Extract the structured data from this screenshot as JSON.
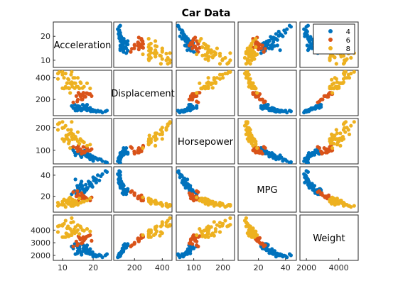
{
  "chart_data": {
    "type": "scatter",
    "title": "Car Data",
    "variables": [
      "Acceleration",
      "Displacement",
      "Horsepower",
      "MPG",
      "Weight"
    ],
    "limits": {
      "Acceleration": [
        7,
        26
      ],
      "Displacement": [
        50,
        470
      ],
      "Horsepower": [
        40,
        240
      ],
      "MPG": [
        5,
        48
      ],
      "Weight": [
        1600,
        5200
      ]
    },
    "ticks": {
      "Acceleration": [
        10,
        20
      ],
      "Displacement": [
        200,
        400
      ],
      "Horsepower": [
        100,
        200
      ],
      "MPG": [
        20,
        40
      ],
      "Weight": [
        2000,
        3000,
        4000
      ]
    },
    "row_tick_labels": {
      "Acceleration": [
        "20",
        "10"
      ],
      "Displacement": [
        "400",
        "200"
      ],
      "Horsepower": [
        "200",
        "100"
      ],
      "MPG": [
        "40",
        "20"
      ],
      "Weight": [
        "4000",
        "3000",
        "2000"
      ]
    },
    "column_tick_labels": {
      "Acceleration": [
        "10",
        "20"
      ],
      "Displacement": [
        "200",
        "400"
      ],
      "Horsepower": [
        "100",
        "200"
      ],
      "MPG": [
        "20",
        "40"
      ],
      "Weight": [
        "2000",
        "4000"
      ]
    },
    "grid": false,
    "legend_position": "top-right",
    "series": [
      {
        "name": "4",
        "color": "#0072BD",
        "points": [
          [
            18,
            98,
            72,
            28,
            2180
          ],
          [
            16,
            107,
            76,
            32,
            2250
          ],
          [
            17,
            120,
            88,
            26,
            2400
          ],
          [
            19,
            97,
            60,
            33,
            2100
          ],
          [
            15,
            140,
            92,
            24,
            2600
          ],
          [
            14.5,
            121,
            110,
            22,
            2800
          ],
          [
            20,
            91,
            53,
            38,
            1900
          ],
          [
            21,
            85,
            65,
            36,
            2000
          ],
          [
            16.5,
            112,
            80,
            30,
            2300
          ],
          [
            15.5,
            135,
            96,
            26,
            2700
          ],
          [
            18.5,
            105,
            70,
            34,
            2150
          ],
          [
            17.5,
            119,
            86,
            27,
            2450
          ],
          [
            14,
            151,
            90,
            25,
            2900
          ],
          [
            22,
            89,
            62,
            35,
            2050
          ],
          [
            24,
            90,
            48,
            44,
            2000
          ],
          [
            19.5,
            98,
            66,
            31,
            2100
          ],
          [
            13.5,
            120,
            100,
            24,
            2550
          ],
          [
            16,
            98,
            75,
            29,
            2200
          ],
          [
            17,
            140,
            86,
            25,
            2750
          ],
          [
            21.5,
            97,
            58,
            40,
            1950
          ],
          [
            15,
            108,
            88,
            28,
            2350
          ],
          [
            18,
            151,
            84,
            27,
            2800
          ],
          [
            23,
            79,
            52,
            41,
            1850
          ],
          [
            16.8,
            113,
            95,
            23,
            2550
          ],
          [
            19,
            122,
            80,
            30,
            2500
          ],
          [
            14.8,
            97,
            88,
            30,
            2150
          ],
          [
            17.8,
            134,
            92,
            26,
            2650
          ],
          [
            20.5,
            98,
            68,
            37,
            2050
          ],
          [
            15.8,
            119,
            82,
            31,
            2300
          ],
          [
            18.8,
            112,
            78,
            32,
            2350
          ],
          [
            13,
            140,
            110,
            22,
            2700
          ],
          [
            22.5,
            91,
            60,
            39,
            1980
          ],
          [
            16.2,
            98,
            70,
            34,
            2050
          ],
          [
            17.2,
            121,
            98,
            24,
            2600
          ],
          [
            19.8,
            105,
            74,
            29,
            2250
          ],
          [
            15.2,
            130,
            90,
            26,
            2900
          ],
          [
            21,
            86,
            64,
            33,
            1900
          ],
          [
            14.2,
            97,
            78,
            36,
            2100
          ],
          [
            18.2,
            115,
            84,
            28,
            2420
          ],
          [
            16.6,
            151,
            88,
            27,
            2850
          ],
          [
            20.2,
            98,
            65,
            35,
            2000
          ],
          [
            17.6,
            108,
            76,
            31,
            2200
          ],
          [
            24.5,
            97,
            46,
            43,
            2100
          ],
          [
            15.6,
            122,
            86,
            25,
            2500
          ],
          [
            19.2,
            90,
            70,
            32,
            2150
          ]
        ]
      },
      {
        "name": "6",
        "color": "#D95319",
        "points": [
          [
            16,
            225,
            100,
            18,
            3300
          ],
          [
            15.5,
            250,
            105,
            19,
            3400
          ],
          [
            17,
            232,
            90,
            20,
            3200
          ],
          [
            18,
            258,
            110,
            17,
            3500
          ],
          [
            16.5,
            200,
            88,
            21,
            3000
          ],
          [
            14.5,
            231,
            110,
            20,
            3100
          ],
          [
            19,
            250,
            100,
            16,
            3600
          ],
          [
            15,
            198,
            95,
            22,
            2900
          ],
          [
            16.8,
            262,
            115,
            18,
            3450
          ],
          [
            13.5,
            173,
            115,
            24,
            2700
          ],
          [
            17.5,
            225,
            95,
            19,
            3350
          ],
          [
            18.5,
            250,
            98,
            17,
            3550
          ],
          [
            15.8,
            232,
            105,
            20,
            3250
          ],
          [
            16.2,
            200,
            85,
            23,
            2950
          ],
          [
            17.8,
            258,
            112,
            18,
            3480
          ],
          [
            14.8,
            181,
            110,
            25,
            2800
          ],
          [
            19.5,
            231,
            105,
            19,
            3150
          ],
          [
            16.6,
            250,
            95,
            21,
            3380
          ],
          [
            17.2,
            225,
            90,
            18,
            3280
          ],
          [
            15.2,
            262,
            120,
            16,
            3520
          ]
        ]
      },
      {
        "name": "8",
        "color": "#EDB120",
        "points": [
          [
            12,
            307,
            130,
            15,
            3500
          ],
          [
            11.5,
            350,
            165,
            14,
            3700
          ],
          [
            11,
            318,
            150,
            16,
            3450
          ],
          [
            10,
            304,
            150,
            15,
            3450
          ],
          [
            10.5,
            302,
            140,
            17,
            3450
          ],
          [
            10,
            429,
            198,
            13,
            4350
          ],
          [
            9,
            454,
            220,
            12,
            4350
          ],
          [
            8.5,
            440,
            215,
            11,
            4300
          ],
          [
            10,
            455,
            225,
            12,
            4430
          ],
          [
            8.5,
            390,
            190,
            14,
            3850
          ],
          [
            12,
            383,
            170,
            13,
            3560
          ],
          [
            13,
            340,
            160,
            15,
            3600
          ],
          [
            14,
            400,
            150,
            12,
            3760
          ],
          [
            15,
            318,
            140,
            13,
            4000
          ],
          [
            12.5,
            350,
            175,
            14,
            4100
          ],
          [
            13.5,
            400,
            170,
            11,
            4650
          ],
          [
            11.5,
            351,
            153,
            16,
            4150
          ],
          [
            15.5,
            302,
            129,
            18,
            3700
          ],
          [
            13,
            360,
            175,
            13,
            3900
          ],
          [
            12,
            305,
            145,
            17,
            3600
          ],
          [
            14.5,
            318,
            150,
            15,
            3850
          ],
          [
            11,
            440,
            208,
            10,
            4750
          ],
          [
            16,
            350,
            145,
            14,
            4200
          ],
          [
            12.5,
            260,
            110,
            19,
            3600
          ],
          [
            14,
            304,
            150,
            16,
            3900
          ],
          [
            13,
            455,
            225,
            11,
            4950
          ],
          [
            15,
            400,
            180,
            12,
            4400
          ],
          [
            11.8,
            390,
            190,
            13,
            4300
          ],
          [
            17,
            318,
            135,
            15,
            3950
          ],
          [
            13.8,
            351,
            152,
            14,
            4050
          ],
          [
            12.2,
            302,
            139,
            18,
            3550
          ],
          [
            14.2,
            350,
            160,
            13,
            4250
          ],
          [
            16.5,
            305,
            140,
            15,
            4000
          ],
          [
            10.5,
            400,
            200,
            12,
            4500
          ],
          [
            18,
            350,
            120,
            16,
            4100
          ],
          [
            13.2,
            318,
            148,
            17,
            3800
          ],
          [
            19,
            302,
            125,
            18,
            3900
          ],
          [
            12.8,
            429,
            190,
            11,
            4600
          ],
          [
            15.8,
            360,
            150,
            14,
            4300
          ],
          [
            11.2,
            307,
            165,
            15,
            3750
          ]
        ]
      }
    ]
  }
}
